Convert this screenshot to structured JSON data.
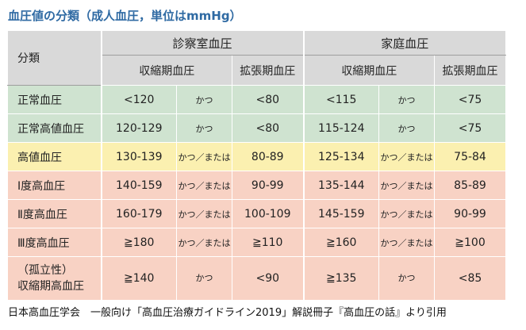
{
  "title": "血圧値の分類（成人血圧，単位はmmHg）",
  "header": {
    "category": "分類",
    "clinic": "診察室血圧",
    "home": "家庭血圧",
    "systolic": "収縮期血圧",
    "diastolic": "拡張期血圧"
  },
  "colors": {
    "title": "#2f6aa3",
    "header_bg": "#d9d9d9",
    "normal_bg": "#cfe3d0",
    "elevated_bg": "#fbf0b0",
    "hypertension_bg": "#f8d2c4"
  },
  "rows": [
    {
      "label": "正常血圧",
      "c_sys": "<120",
      "c_conj": "かつ",
      "c_dia": "<80",
      "h_sys": "<115",
      "h_conj": "かつ",
      "h_dia": "<75"
    },
    {
      "label": "正常高値血圧",
      "c_sys": "120-129",
      "c_conj": "かつ",
      "c_dia": "<80",
      "h_sys": "115-124",
      "h_conj": "かつ",
      "h_dia": "<75"
    },
    {
      "label": "高値血圧",
      "c_sys": "130-139",
      "c_conj": "かつ／または",
      "c_dia": "80-89",
      "h_sys": "125-134",
      "h_conj": "かつ／または",
      "h_dia": "75-84"
    },
    {
      "label": "Ⅰ度高血圧",
      "c_sys": "140-159",
      "c_conj": "かつ／または",
      "c_dia": "90-99",
      "h_sys": "135-144",
      "h_conj": "かつ／または",
      "h_dia": "85-89"
    },
    {
      "label": "Ⅱ度高血圧",
      "c_sys": "160-179",
      "c_conj": "かつ／または",
      "c_dia": "100-109",
      "h_sys": "145-159",
      "h_conj": "かつ／または",
      "h_dia": "90-99"
    },
    {
      "label": "Ⅲ度高血圧",
      "c_sys": "≧180",
      "c_conj": "かつ／または",
      "c_dia": "≧110",
      "h_sys": "≧160",
      "h_conj": "かつ／または",
      "h_dia": "≧100"
    },
    {
      "label_line1": "（孤立性）",
      "label_line2": "収縮期高血圧",
      "c_sys": "≧140",
      "c_conj": "かつ",
      "c_dia": "<90",
      "h_sys": "≧135",
      "h_conj": "かつ",
      "h_dia": "<85"
    }
  ],
  "footer": "日本高血圧学会　一般向け「高血圧治療ガイドライン2019」解説冊子『高血圧の話』より引用"
}
